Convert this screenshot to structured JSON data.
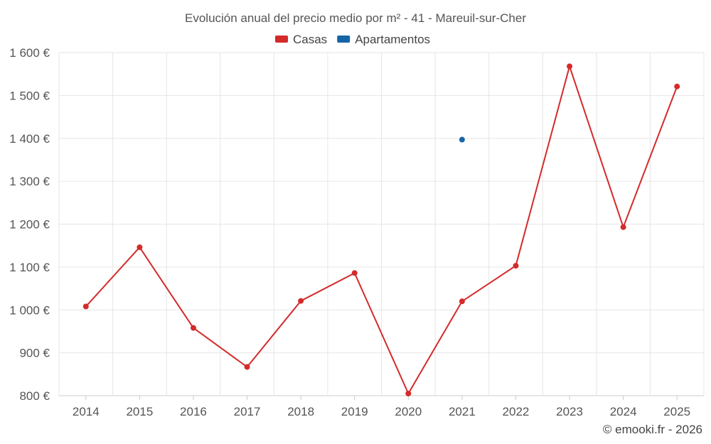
{
  "chart_data": {
    "type": "line",
    "title": "Evolución anual del precio medio por m² - 41 - Mareuil-sur-Cher",
    "categories": [
      "2014",
      "2015",
      "2016",
      "2017",
      "2018",
      "2019",
      "2020",
      "2021",
      "2022",
      "2023",
      "2024",
      "2025"
    ],
    "series": [
      {
        "name": "Casas",
        "color": "#d42a2a",
        "values": [
          1008,
          1146,
          958,
          867,
          1021,
          1086,
          805,
          1020,
          1103,
          1568,
          1193,
          1521
        ]
      },
      {
        "name": "Apartamentos",
        "color": "#1565a6",
        "values": [
          null,
          null,
          null,
          null,
          null,
          null,
          null,
          1397,
          null,
          null,
          null,
          null
        ]
      }
    ],
    "y_ticks": [
      800,
      900,
      1000,
      1100,
      1200,
      1300,
      1400,
      1500,
      1600
    ],
    "y_tick_labels": [
      "800 €",
      "900 €",
      "1 000 €",
      "1 100 €",
      "1 200 €",
      "1 300 €",
      "1 400 €",
      "1 500 €",
      "1 600 €"
    ],
    "ylim": [
      800,
      1600
    ],
    "xlabel": "",
    "ylabel": "",
    "grid": true,
    "legend_position": "top-center"
  },
  "credit": "© emooki.fr - 2026"
}
